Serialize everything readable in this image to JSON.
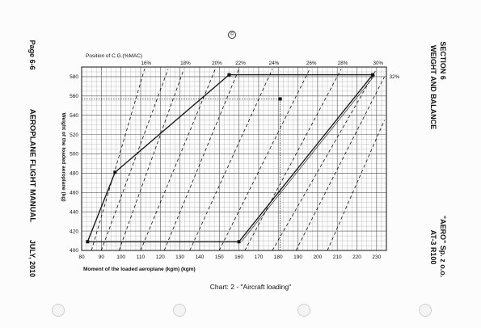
{
  "header": {
    "page": "Page 6-6",
    "manual": "AEROPLANE FLIGHT MANUAL",
    "date": "JULY, 2010",
    "section": "SECTION 6",
    "section_title": "WEIGHT AND BALANCE",
    "company": "\"AERO\" Sp. z o.o.",
    "model": "AT-3 R100"
  },
  "caption": "Chart: 2 - \"Aircraft loading\"",
  "chart_data": {
    "type": "line",
    "title": "",
    "xlabel": "Moment of the loaded aeroplane (kgm) (kgm)",
    "ylabel": "Weight of the loaded aeroplane (kg)",
    "xlim": [
      80,
      235
    ],
    "ylim": [
      400,
      590
    ],
    "x_ticks": [
      80,
      90,
      100,
      110,
      120,
      130,
      140,
      150,
      160,
      170,
      180,
      190,
      200,
      210,
      220,
      230
    ],
    "y_ticks": [
      400,
      420,
      440,
      460,
      480,
      500,
      520,
      540,
      560,
      580
    ],
    "grid": true,
    "cg_axis_label": "Position of C.G.(%MAC)",
    "cg_lines": [
      {
        "label": "16%",
        "from": [
          85,
          400
        ],
        "to": [
          112,
          588
        ]
      },
      {
        "label": "18%",
        "from": [
          99,
          400
        ],
        "to": [
          132,
          588
        ]
      },
      {
        "label": "20%",
        "from": [
          110,
          400
        ],
        "to": [
          148,
          588
        ]
      },
      {
        "label": "22%",
        "from": [
          122,
          400
        ],
        "to": [
          160,
          588
        ]
      },
      {
        "label": "24%",
        "from": [
          135,
          400
        ],
        "to": [
          177,
          588
        ]
      },
      {
        "label": "26%",
        "from": [
          150,
          400
        ],
        "to": [
          196,
          588
        ]
      },
      {
        "label": "28%",
        "from": [
          163,
          400
        ],
        "to": [
          212,
          588
        ]
      },
      {
        "label": "30%",
        "from": [
          177,
          400
        ],
        "to": [
          230,
          588
        ]
      },
      {
        "label": "32%",
        "from": [
          189,
          400
        ],
        "to": [
          234,
          580
        ]
      }
    ],
    "extra_cg_lines": [
      {
        "from": [
          90,
          400
        ],
        "to": [
          124,
          588
        ]
      },
      {
        "from": [
          205,
          400
        ],
        "to": [
          234,
          535
        ]
      }
    ],
    "envelope": [
      {
        "x": 83,
        "y": 409
      },
      {
        "x": 97,
        "y": 481
      },
      {
        "x": 155,
        "y": 582
      },
      {
        "x": 228,
        "y": 582
      },
      {
        "x": 160,
        "y": 409
      },
      {
        "x": 83,
        "y": 409
      }
    ],
    "example_point": {
      "x": 181,
      "y": 557
    },
    "end_label": "32%"
  }
}
